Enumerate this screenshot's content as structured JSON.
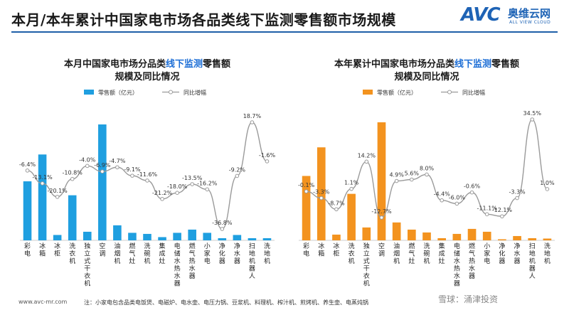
{
  "page_title": "本月/本年累计中国家电市场各品类线下监测零售额市场规模",
  "logo": {
    "mark": "AVC",
    "name": "奥维云网",
    "sub": "ALL VIEW CLOUD"
  },
  "footer": {
    "url": "www.avc-mr.com",
    "note": "注：小家电包含品类电饭煲、电磁炉、电水壶、电压力锅、豆浆机、料理机、榨汁机、煎烤机、养生壶、电蒸炖锅",
    "brand": "雪球：涌津投资"
  },
  "colors": {
    "blue": "#1f9fe0",
    "orange": "#f3931f",
    "line": "#9a9a9a",
    "accent_title": "#1e6fd6"
  },
  "chart_data": [
    {
      "type": "bar",
      "title_part1": "本月中国家电市场分品类",
      "title_highlight": "线下监测",
      "title_part2": "零售额",
      "title_line2": "规模及同比情况",
      "legend_bar": "零售额（亿元）",
      "legend_line": "同比增幅",
      "categories": [
        "彩电",
        "冰箱",
        "冰柜",
        "洗衣机",
        "独立式干衣机",
        "空调",
        "油烟机",
        "燃气灶",
        "洗碗机",
        "集成灶",
        "电储水热水器",
        "燃气热水器",
        "小家电",
        "净化器",
        "净水器",
        "扫地机器人",
        "洗地机"
      ],
      "values": [
        55,
        80,
        5,
        42,
        8,
        108,
        14,
        7,
        6,
        3,
        7,
        10,
        7,
        2,
        5,
        2,
        2
      ],
      "growth": [
        -6.4,
        -13.1,
        -20.1,
        -10.8,
        -4.0,
        -6.9,
        -4.7,
        -9.1,
        -11.6,
        -21.2,
        -18.0,
        -13.5,
        -16.2,
        -36.8,
        -9.2,
        18.7,
        -1.6
      ],
      "growth_labels": [
        "-6.4%",
        "-13.1%",
        "-20.1%",
        "-10.8%",
        "-4.0%",
        "-6.9%",
        "-4.7%",
        "-9.1%",
        "-11.6%",
        "-21.2%",
        "-18.0%",
        "-13.5%",
        "-16.2%",
        "-36.8%",
        "-9.2%",
        "18.7%",
        "-1.6%"
      ]
    },
    {
      "type": "bar",
      "title_part1": "本年累计中国家电市场分品类",
      "title_highlight": "线下监测",
      "title_part2": "零售额",
      "title_line2": "规模及同比情况",
      "legend_bar": "零售额（亿元）",
      "legend_line": "同比增幅",
      "categories": [
        "彩电",
        "冰箱",
        "冰柜",
        "洗衣机",
        "独立式干衣机",
        "空调",
        "油烟机",
        "燃气灶",
        "洗碗机",
        "集成灶",
        "电储水热水器",
        "燃气热水器",
        "小家电",
        "净化器",
        "净水器",
        "扫地机器人",
        "洗地机"
      ],
      "values": [
        900,
        1300,
        80,
        650,
        180,
        1650,
        250,
        150,
        110,
        30,
        90,
        160,
        120,
        15,
        60,
        30,
        25
      ],
      "growth": [
        -0.1,
        -3.3,
        -8.7,
        1.1,
        14.2,
        -12.7,
        4.9,
        5.6,
        8.0,
        -4.4,
        -6.0,
        -0.6,
        -11.1,
        -12.1,
        -3.3,
        34.5,
        1.0
      ],
      "growth_labels": [
        "-0.1%",
        "-3.3%",
        "-8.7%",
        "1.1%",
        "14.2%",
        "-12.7%",
        "4.9%",
        "5.6%",
        "8.0%",
        "-4.4%",
        "-6.0%",
        "-0.6%",
        "-11.1%",
        "-12.1%",
        "-3.3%",
        "34.5%",
        "1.0%"
      ]
    }
  ]
}
